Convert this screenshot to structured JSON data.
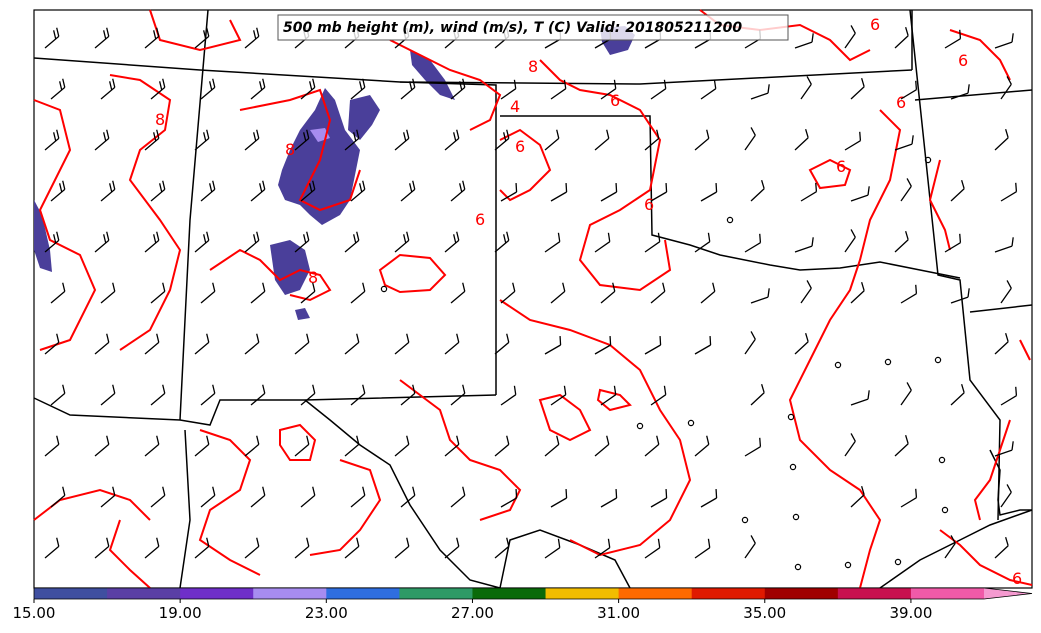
{
  "title": "500 mb height (m), wind (m/s), T (C) Valid: 201805211200",
  "colorbar": {
    "ticks": [
      "15.00",
      "19.00",
      "23.00",
      "27.00",
      "31.00",
      "35.00",
      "39.00"
    ],
    "colors": [
      "#3f4fa0",
      "#5a3fa5",
      "#6f2fc9",
      "#a78cf0",
      "#2f6ee0",
      "#2e9a66",
      "#0a6a0a",
      "#f2bd00",
      "#ff6a00",
      "#e01a00",
      "#a00000",
      "#c8104f",
      "#f05aa8",
      "#f59ad0"
    ]
  },
  "contour_labels": [
    "6",
    "8",
    "6",
    "6",
    "8",
    "4",
    "6",
    "6",
    "6",
    "6",
    "8",
    "6",
    "8",
    "6"
  ],
  "colors": {
    "contour": "#ff0000",
    "boundary": "#000000",
    "shading": "#4a3f9a",
    "background": "#ffffff"
  },
  "icons": {
    "wind_barb": "wind-barb-icon",
    "calm": "calm-circle-icon"
  }
}
